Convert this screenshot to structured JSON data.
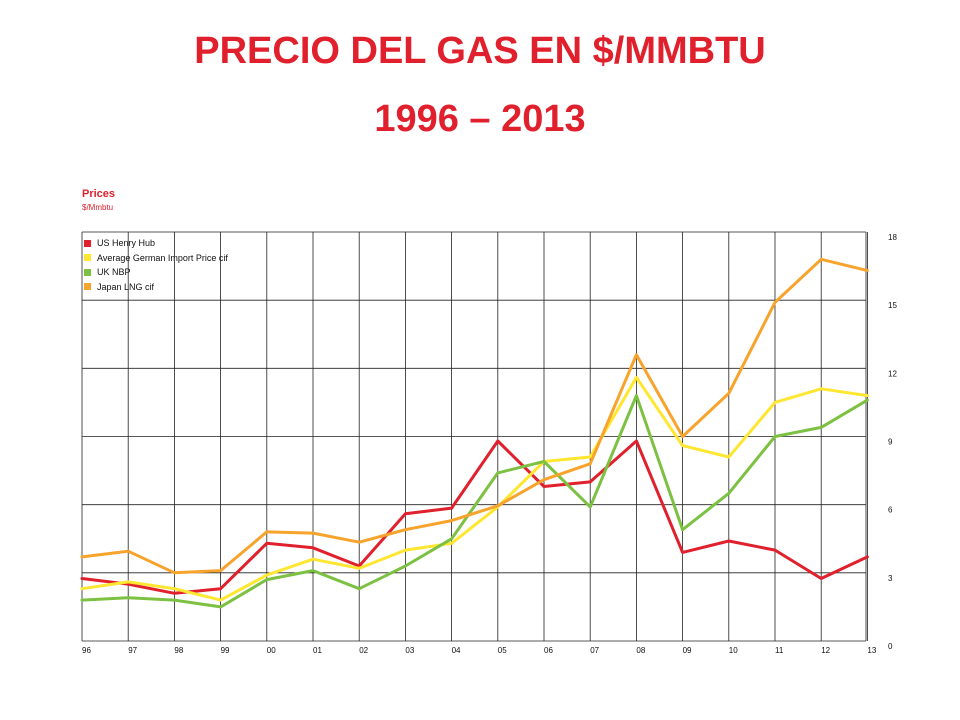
{
  "slide": {
    "title_line1": "PRECIO DEL GAS EN $/MMBTU",
    "title_line2": "1996 – 2013"
  },
  "chart_data": {
    "type": "line",
    "title": "Prices",
    "subtitle": "$/Mmbtu",
    "x": [
      "96",
      "97",
      "98",
      "99",
      "00",
      "01",
      "02",
      "03",
      "04",
      "05",
      "06",
      "07",
      "08",
      "09",
      "10",
      "11",
      "12",
      "13"
    ],
    "y_ticks": [
      0,
      3,
      6,
      9,
      12,
      15,
      18
    ],
    "ylim": [
      0,
      18
    ],
    "grid": true,
    "legend_position": "top-left",
    "series": [
      {
        "name": "US Henry Hub",
        "color": "#e0202c",
        "values": [
          2.75,
          2.5,
          2.1,
          2.3,
          4.3,
          4.1,
          3.3,
          5.6,
          5.85,
          8.8,
          6.8,
          7.0,
          8.8,
          3.9,
          4.4,
          4.0,
          2.75,
          3.7
        ]
      },
      {
        "name": "Average German Import Price cif",
        "color": "#ffe631",
        "values": [
          2.3,
          2.6,
          2.3,
          1.8,
          2.9,
          3.6,
          3.2,
          4.0,
          4.3,
          5.9,
          7.9,
          8.1,
          11.6,
          8.6,
          8.1,
          10.5,
          11.1,
          10.8
        ]
      },
      {
        "name": "UK NBP",
        "color": "#7cc142",
        "values": [
          1.8,
          1.9,
          1.8,
          1.5,
          2.7,
          3.1,
          2.3,
          3.3,
          4.5,
          7.4,
          7.9,
          5.9,
          10.8,
          4.9,
          6.5,
          9.0,
          9.4,
          10.6
        ]
      },
      {
        "name": "Japan LNG cif",
        "color": "#f7a32c",
        "values": [
          3.7,
          3.95,
          3.0,
          3.1,
          4.8,
          4.75,
          4.35,
          4.9,
          5.3,
          5.95,
          7.1,
          7.8,
          12.6,
          9.0,
          10.9,
          14.9,
          16.8,
          16.3
        ]
      }
    ]
  }
}
